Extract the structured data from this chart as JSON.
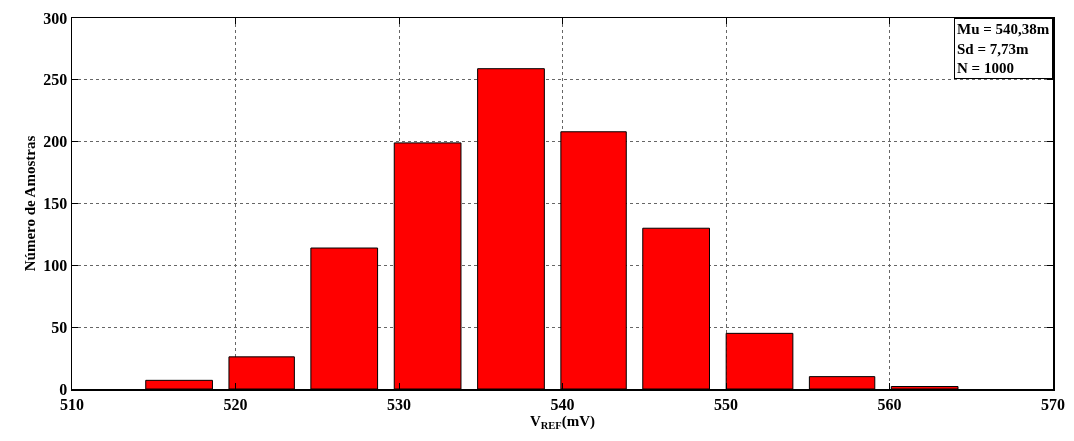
{
  "chart_data": {
    "type": "histogram",
    "xlabel": "V$_{REF}$(mV)",
    "ylabel": "Número de Amostras",
    "bins": [
      514.0,
      519.1,
      524.1,
      529.2,
      534.3,
      539.4,
      544.4,
      549.5,
      554.6,
      559.6,
      564.7
    ],
    "values": [
      7,
      26,
      114,
      199,
      259,
      208,
      130,
      45,
      10,
      2
    ],
    "color": "#ff0000",
    "xlim": [
      510,
      570
    ],
    "xticks": [
      510,
      520,
      530,
      540,
      550,
      560,
      570
    ],
    "ylim": [
      0,
      300
    ],
    "yticks": [
      0,
      50,
      100,
      150,
      200,
      250,
      300
    ],
    "grid": true,
    "annotations": [
      "Mu = 540,38m",
      "Sd = 7,73m",
      "N = 1000"
    ]
  }
}
